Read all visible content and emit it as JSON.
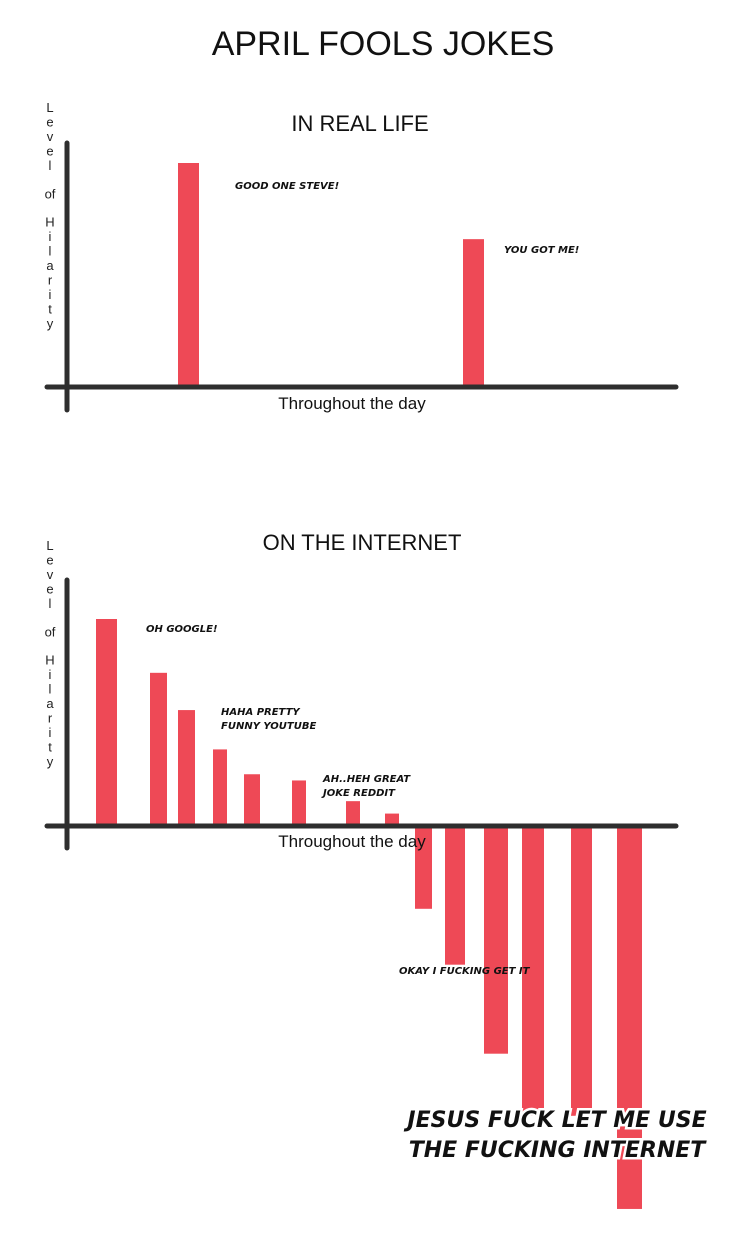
{
  "title": "APRIL FOOLS JOKES",
  "colors": {
    "bar": "#ee4956",
    "axis": "#2e2e2e"
  },
  "chart_data": [
    {
      "type": "bar",
      "title": "IN REAL LIFE",
      "xlabel": "Throughout the day",
      "ylabel": "Level of Hilarity",
      "ylim": [
        0,
        100
      ],
      "grid": false,
      "categories": [
        "1",
        "2"
      ],
      "values": [
        100,
        66
      ],
      "annotations": [
        {
          "text": "GOOD ONE STEVE!",
          "bar": 0
        },
        {
          "text": "YOU GOT ME!",
          "bar": 1
        }
      ]
    },
    {
      "type": "bar",
      "title": "ON THE INTERNET",
      "xlabel": "Throughout the day",
      "ylabel": "Level of Hilarity",
      "ylim": [
        -180,
        100
      ],
      "grid": false,
      "categories": [
        "1",
        "2",
        "3",
        "4",
        "5",
        "6",
        "7",
        "8",
        "9",
        "10",
        "11",
        "12",
        "13",
        "14"
      ],
      "values": [
        100,
        74,
        56,
        37,
        25,
        22,
        12,
        6,
        -40,
        -67,
        -110,
        -140,
        -140,
        -185
      ],
      "annotations": [
        {
          "text": "OH GOOGLE!",
          "bar": 0
        },
        {
          "text": "HAHA PRETTY FUNNY YOUTUBE",
          "bar": 2
        },
        {
          "text": "AH..HEH GREAT JOKE REDDIT",
          "bar": 6
        },
        {
          "text": "OKAY I FUCKING GET IT",
          "bar": 9
        },
        {
          "text": "JESUS FUCK LET ME USE THE FUCKING INTERNET",
          "bar": 12
        }
      ]
    }
  ]
}
